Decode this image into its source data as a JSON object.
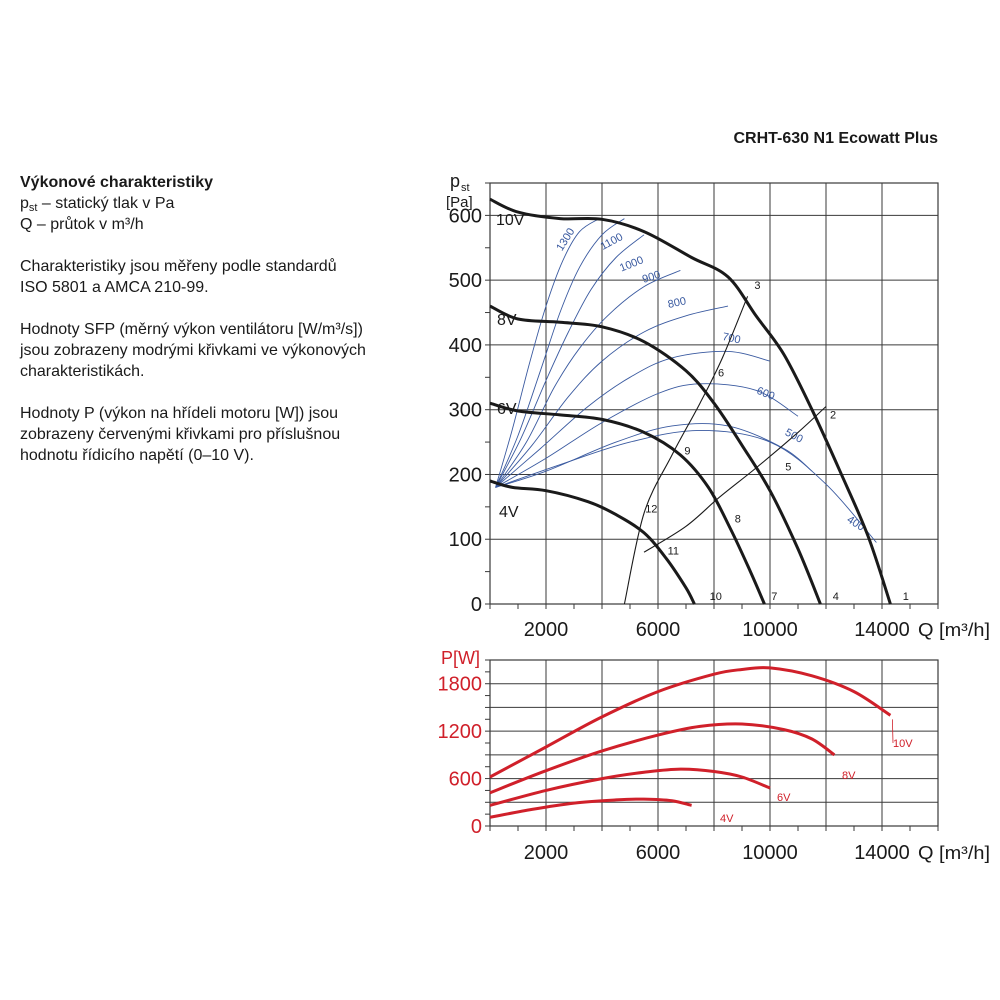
{
  "title": "CRHT-630 N1 Ecowatt Plus",
  "description": {
    "heading": "Výkonové charakteristiky",
    "lines": [
      "p",
      "st",
      " – statický tlak v Pa",
      "Q – průtok v m³/h"
    ],
    "para2": [
      "Charakteristiky jsou měřeny podle standardů",
      "ISO 5801 a AMCA 210-99."
    ],
    "para3": [
      "Hodnoty SFP (měrný výkon ventilátoru [W/m³/s])",
      "jsou zobrazeny modrými křivkami ve výkonových",
      "charakteristikách."
    ],
    "para4": [
      "Hodnoty P (výkon na hřídeli motoru [W]) jsou",
      "zobrazeny červenými křivkami pro příslušnou",
      "hodnotu řídicího napětí (0–10 V)."
    ]
  },
  "colors": {
    "fan_curve": "#1a1a1a",
    "sfp": "#3a5aa0",
    "power": "#d0202a",
    "grid": "#3a3a3a"
  },
  "chart_data": [
    {
      "type": "line",
      "ylabel": "p",
      "ylabel_sub": "st",
      "yunit": "[Pa]",
      "xlabel": "Q [m³/h]",
      "xlim": [
        0,
        16000
      ],
      "ylim": [
        0,
        650
      ],
      "xticks": [
        2000,
        6000,
        10000,
        14000
      ],
      "yticks": [
        0,
        100,
        200,
        300,
        400,
        500,
        600
      ],
      "grid": true,
      "series": [
        {
          "name": "10V",
          "points": [
            [
              0,
              625
            ],
            [
              1000,
              605
            ],
            [
              2500,
              595
            ],
            [
              4000,
              594
            ],
            [
              5500,
              575
            ],
            [
              7200,
              535
            ],
            [
              8500,
              505
            ],
            [
              9500,
              445
            ],
            [
              10500,
              385
            ],
            [
              11500,
              300
            ],
            [
              12500,
              205
            ],
            [
              13500,
              105
            ],
            [
              14300,
              0
            ]
          ]
        },
        {
          "name": "8V",
          "points": [
            [
              0,
              460
            ],
            [
              1000,
              440
            ],
            [
              2500,
              435
            ],
            [
              4000,
              428
            ],
            [
              5500,
              405
            ],
            [
              7000,
              360
            ],
            [
              8000,
              310
            ],
            [
              9000,
              245
            ],
            [
              10000,
              175
            ],
            [
              11000,
              85
            ],
            [
              11800,
              0
            ]
          ]
        },
        {
          "name": "6V",
          "points": [
            [
              0,
              310
            ],
            [
              1000,
              298
            ],
            [
              2500,
              292
            ],
            [
              4000,
              285
            ],
            [
              5500,
              265
            ],
            [
              6800,
              230
            ],
            [
              7800,
              180
            ],
            [
              8600,
              115
            ],
            [
              9300,
              50
            ],
            [
              9800,
              0
            ]
          ]
        },
        {
          "name": "4V",
          "points": [
            [
              0,
              190
            ],
            [
              800,
              180
            ],
            [
              2000,
              175
            ],
            [
              3500,
              158
            ],
            [
              4500,
              138
            ],
            [
              5500,
              110
            ],
            [
              6300,
              70
            ],
            [
              7000,
              25
            ],
            [
              7300,
              0
            ]
          ]
        }
      ],
      "system_curves": [
        {
          "points": [
            [
              14300,
              0
            ],
            [
              13500,
              105
            ],
            [
              12500,
              205
            ],
            [
              11500,
              300
            ],
            [
              10500,
              385
            ],
            [
              9500,
              445
            ],
            [
              8500,
              505
            ]
          ]
        },
        {
          "points": [
            [
              11800,
              0
            ],
            [
              11000,
              85
            ],
            [
              10000,
              175
            ],
            [
              9000,
              245
            ],
            [
              8000,
              310
            ],
            [
              7000,
              360
            ],
            [
              5500,
              405
            ]
          ]
        },
        {
          "points": [
            [
              9800,
              0
            ],
            [
              9300,
              50
            ],
            [
              8600,
              115
            ],
            [
              7800,
              180
            ],
            [
              6800,
              230
            ],
            [
              5500,
              265
            ]
          ]
        },
        {
          "points": [
            [
              7300,
              0
            ],
            [
              7000,
              25
            ],
            [
              6300,
              70
            ],
            [
              5500,
              110
            ],
            [
              4500,
              138
            ]
          ]
        }
      ],
      "operating_lines": [
        {
          "points": [
            [
              4800,
              0
            ],
            [
              5500,
              140
            ],
            [
              6500,
              230
            ],
            [
              7500,
              310
            ],
            [
              8300,
              380
            ],
            [
              9200,
              475
            ]
          ]
        },
        {
          "points": [
            [
              5500,
              80
            ],
            [
              7000,
              120
            ],
            [
              8200,
              165
            ],
            [
              9500,
              210
            ],
            [
              11000,
              265
            ],
            [
              12000,
              305
            ]
          ]
        }
      ],
      "sfp_curves": [
        {
          "name": "400",
          "points": [
            [
              200,
              180
            ],
            [
              2500,
              215
            ],
            [
              5000,
              250
            ],
            [
              7500,
              268
            ],
            [
              10000,
              250
            ],
            [
              12000,
              185
            ],
            [
              13800,
              95
            ]
          ]
        },
        {
          "name": "500",
          "points": [
            [
              200,
              180
            ],
            [
              2000,
              205
            ],
            [
              4500,
              250
            ],
            [
              6500,
              275
            ],
            [
              8500,
              275
            ],
            [
              10500,
              240
            ],
            [
              11500,
              205
            ]
          ]
        },
        {
          "name": "600",
          "points": [
            [
              200,
              180
            ],
            [
              2000,
              225
            ],
            [
              4000,
              280
            ],
            [
              6000,
              325
            ],
            [
              7500,
              340
            ],
            [
              9500,
              330
            ],
            [
              11000,
              290
            ]
          ]
        },
        {
          "name": "700",
          "points": [
            [
              200,
              180
            ],
            [
              1800,
              240
            ],
            [
              3500,
              305
            ],
            [
              5000,
              350
            ],
            [
              6500,
              380
            ],
            [
              8500,
              390
            ],
            [
              10000,
              375
            ]
          ]
        },
        {
          "name": "800",
          "points": [
            [
              200,
              180
            ],
            [
              1500,
              245
            ],
            [
              2800,
              320
            ],
            [
              4000,
              375
            ],
            [
              5500,
              420
            ],
            [
              7000,
              445
            ],
            [
              8500,
              460
            ]
          ]
        },
        {
          "name": "900",
          "points": [
            [
              200,
              180
            ],
            [
              1300,
              250
            ],
            [
              2300,
              335
            ],
            [
              3200,
              395
            ],
            [
              4200,
              445
            ],
            [
              5500,
              490
            ],
            [
              6800,
              515
            ]
          ]
        },
        {
          "name": "1000",
          "points": [
            [
              200,
              180
            ],
            [
              1100,
              255
            ],
            [
              2000,
              345
            ],
            [
              2800,
              420
            ],
            [
              3600,
              485
            ],
            [
              4500,
              535
            ],
            [
              5500,
              570
            ]
          ]
        },
        {
          "name": "1100",
          "points": [
            [
              200,
              180
            ],
            [
              1000,
              260
            ],
            [
              1800,
              360
            ],
            [
              2500,
              450
            ],
            [
              3200,
              520
            ],
            [
              4000,
              570
            ],
            [
              4800,
              595
            ]
          ]
        },
        {
          "name": "1300",
          "points": [
            [
              200,
              180
            ],
            [
              800,
              270
            ],
            [
              1400,
              370
            ],
            [
              2000,
              460
            ],
            [
              2600,
              530
            ],
            [
              3200,
              575
            ],
            [
              3900,
              595
            ]
          ]
        }
      ],
      "point_labels": [
        {
          "label": "1",
          "x": 14600,
          "y": 0
        },
        {
          "label": "2",
          "x": 12000,
          "y": 280
        },
        {
          "label": "3",
          "x": 9300,
          "y": 480
        },
        {
          "label": "4",
          "x": 12100,
          "y": 0
        },
        {
          "label": "5",
          "x": 10400,
          "y": 200
        },
        {
          "label": "6",
          "x": 8000,
          "y": 345
        },
        {
          "label": "7",
          "x": 9900,
          "y": 0
        },
        {
          "label": "8",
          "x": 8600,
          "y": 120
        },
        {
          "label": "9",
          "x": 6800,
          "y": 225
        },
        {
          "label": "10",
          "x": 7700,
          "y": 0
        },
        {
          "label": "11",
          "x": 6200,
          "y": 70
        },
        {
          "label": "12",
          "x": 5400,
          "y": 135
        }
      ]
    },
    {
      "type": "line",
      "ylabel": "P[W]",
      "xlabel": "Q [m³/h]",
      "xlim": [
        0,
        16000
      ],
      "ylim": [
        0,
        2100
      ],
      "xticks": [
        2000,
        6000,
        10000,
        14000
      ],
      "yticks": [
        0,
        600,
        1200,
        1800
      ],
      "grid": true,
      "series": [
        {
          "name": "10V",
          "points": [
            [
              0,
              620
            ],
            [
              2000,
              1000
            ],
            [
              4000,
              1380
            ],
            [
              6000,
              1700
            ],
            [
              8000,
              1920
            ],
            [
              9000,
              1980
            ],
            [
              10000,
              2000
            ],
            [
              11500,
              1900
            ],
            [
              13000,
              1700
            ],
            [
              14300,
              1400
            ]
          ]
        },
        {
          "name": "8V",
          "points": [
            [
              0,
              420
            ],
            [
              2000,
              700
            ],
            [
              4000,
              950
            ],
            [
              6000,
              1150
            ],
            [
              7500,
              1260
            ],
            [
              9000,
              1290
            ],
            [
              10500,
              1220
            ],
            [
              11500,
              1100
            ],
            [
              12300,
              900
            ]
          ]
        },
        {
          "name": "6V",
          "points": [
            [
              0,
              260
            ],
            [
              2000,
              450
            ],
            [
              4000,
              600
            ],
            [
              5500,
              680
            ],
            [
              6800,
              720
            ],
            [
              8000,
              690
            ],
            [
              9000,
              620
            ],
            [
              10000,
              480
            ]
          ]
        },
        {
          "name": "4V",
          "points": [
            [
              0,
              110
            ],
            [
              1500,
              210
            ],
            [
              3000,
              290
            ],
            [
              4500,
              330
            ],
            [
              5500,
              340
            ],
            [
              6500,
              320
            ],
            [
              7200,
              260
            ]
          ]
        }
      ]
    }
  ]
}
